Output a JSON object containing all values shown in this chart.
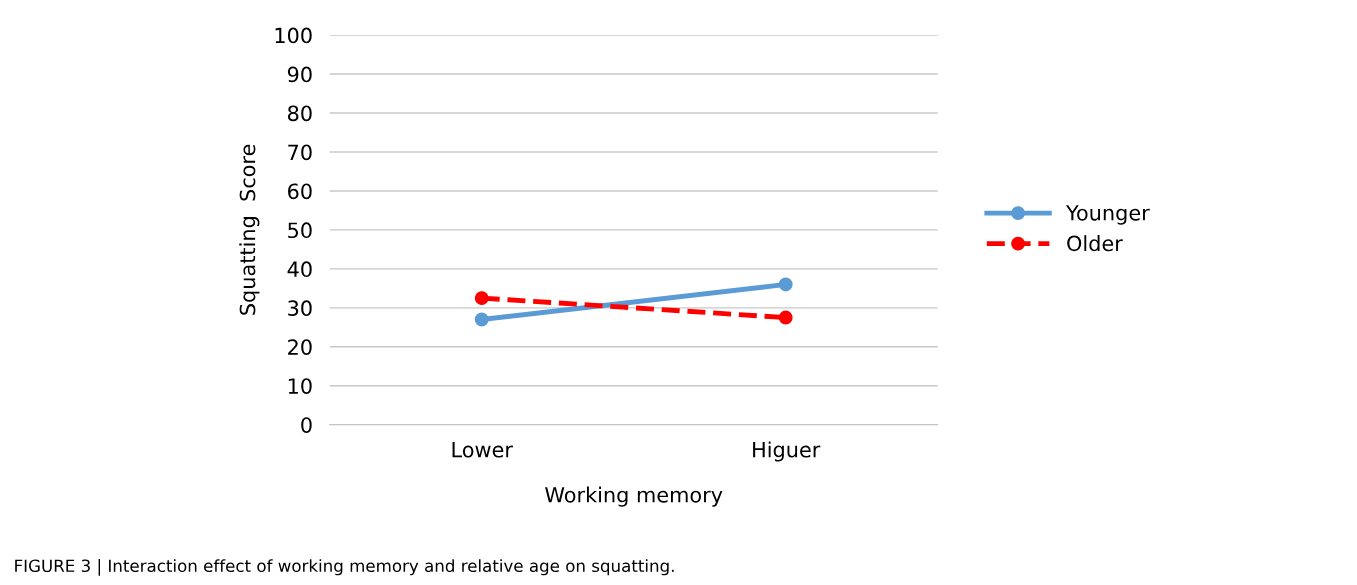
{
  "chart_data": {
    "type": "line",
    "xlabel": "Working memory",
    "ylabel": "Squatting  Score",
    "categories": [
      "Lower",
      "Higuer"
    ],
    "series": [
      {
        "name": "Younger",
        "color": "#5b9bd5",
        "values": [
          27,
          36
        ],
        "line_style": "solid"
      },
      {
        "name": "Older",
        "color": "#ff0000",
        "values": [
          32.5,
          27.5
        ],
        "line_style": "dashed"
      }
    ],
    "ylim": [
      0,
      100
    ],
    "yticks": [
      0,
      10,
      20,
      30,
      40,
      50,
      60,
      70,
      80,
      90,
      100
    ],
    "grid": "y",
    "legend": "right",
    "marker": "circle",
    "annotations": [
      "FIGURE 3 | Interaction effect of working memory and relative age on squatting."
    ]
  }
}
